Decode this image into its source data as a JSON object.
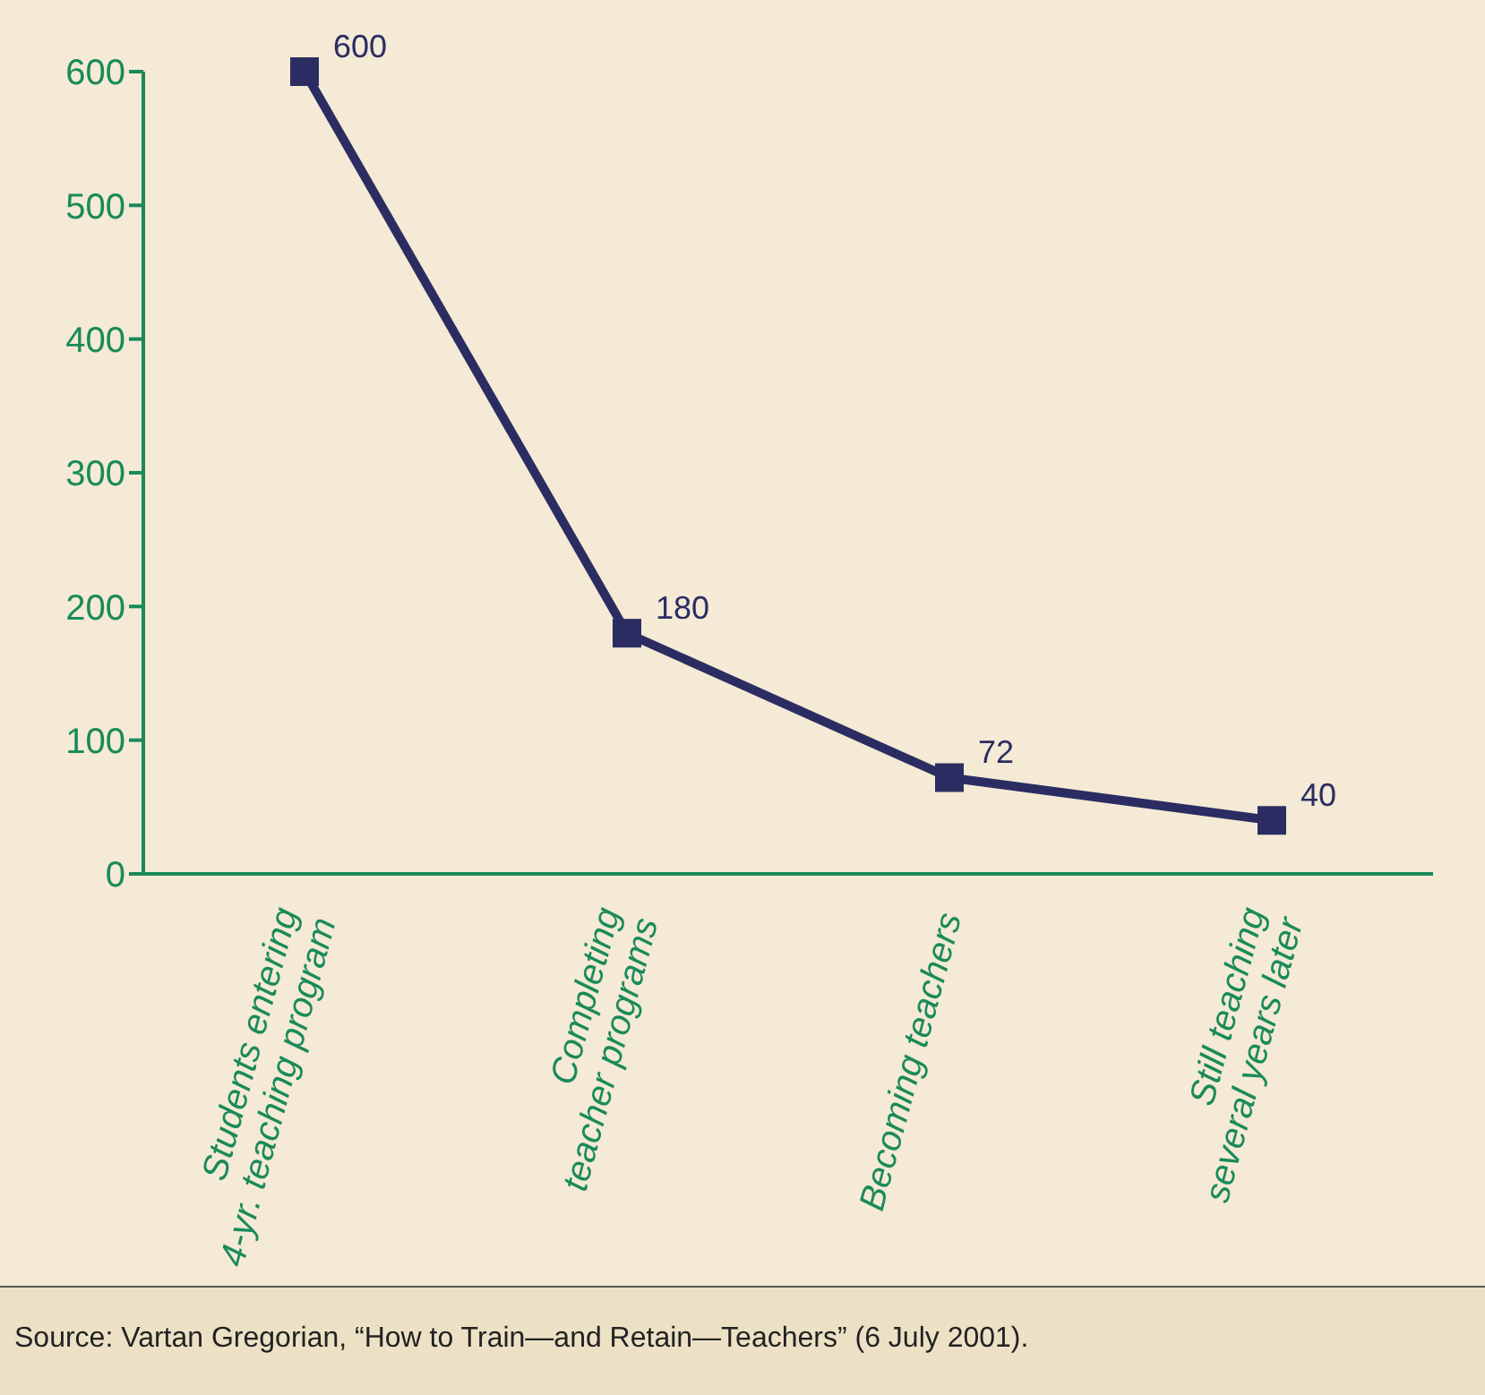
{
  "chart_data": {
    "type": "line",
    "categories": [
      "Students entering\n4-yr. teaching program",
      "Completing\nteacher programs",
      "Becoming teachers",
      "Still teaching\nseveral years later"
    ],
    "series": [
      {
        "color": "#2b2d62",
        "values": [
          600,
          180,
          72,
          40
        ]
      }
    ],
    "ylim": [
      0,
      600
    ],
    "yticks": [
      0,
      100,
      200,
      300,
      400,
      500,
      600
    ],
    "grid": false,
    "legend": false,
    "marker": "square",
    "line_style": "solid",
    "data_labels": true,
    "annotations": [
      "Source: Vartan Gregorian, “How to Train—and Retain—Teachers” (6 July 2001)."
    ]
  }
}
